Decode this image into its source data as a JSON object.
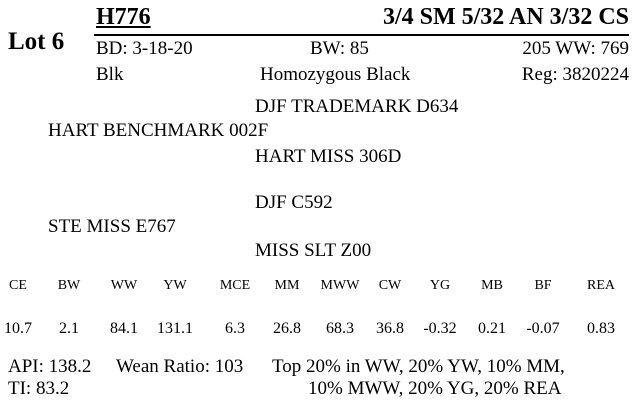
{
  "lot": "Lot 6",
  "header": {
    "tag": "H776",
    "breed": "3/4 SM 5/32 AN 3/32 CS"
  },
  "info": {
    "bd": "BD: 3-18-20",
    "bw": "BW: 85",
    "ww205": "205 WW: 769",
    "color": "Blk",
    "genotype": "Homozygous Black",
    "reg": "Reg: 3820224"
  },
  "pedigree": {
    "sire_sire": "DJF TRADEMARK D634",
    "sire": "HART BENCHMARK 002F",
    "sire_dam": "HART MISS 306D",
    "dam_sire": "DJF C592",
    "dam": "STE MISS E767",
    "dam_dam": "MISS SLT Z00"
  },
  "epds": {
    "labels": [
      "CE",
      "BW",
      "WW",
      "YW",
      "MCE",
      "MM",
      "MWW",
      "CW",
      "YG",
      "MB",
      "BF",
      "REA"
    ],
    "values": [
      "10.7",
      "2.1",
      "84.1",
      "131.1",
      "6.3",
      "26.8",
      "68.3",
      "36.8",
      "-0.32",
      "0.21",
      "-0.07",
      "0.83"
    ]
  },
  "footer": {
    "api": "API: 138.2",
    "wean_ratio": "Wean Ratio: 103",
    "top_line1": "Top 20% in WW,  20% YW,  10% MM,",
    "ti": "TI: 83.2",
    "top_line2": "10% MWW,  20% YG,  20% REA"
  }
}
